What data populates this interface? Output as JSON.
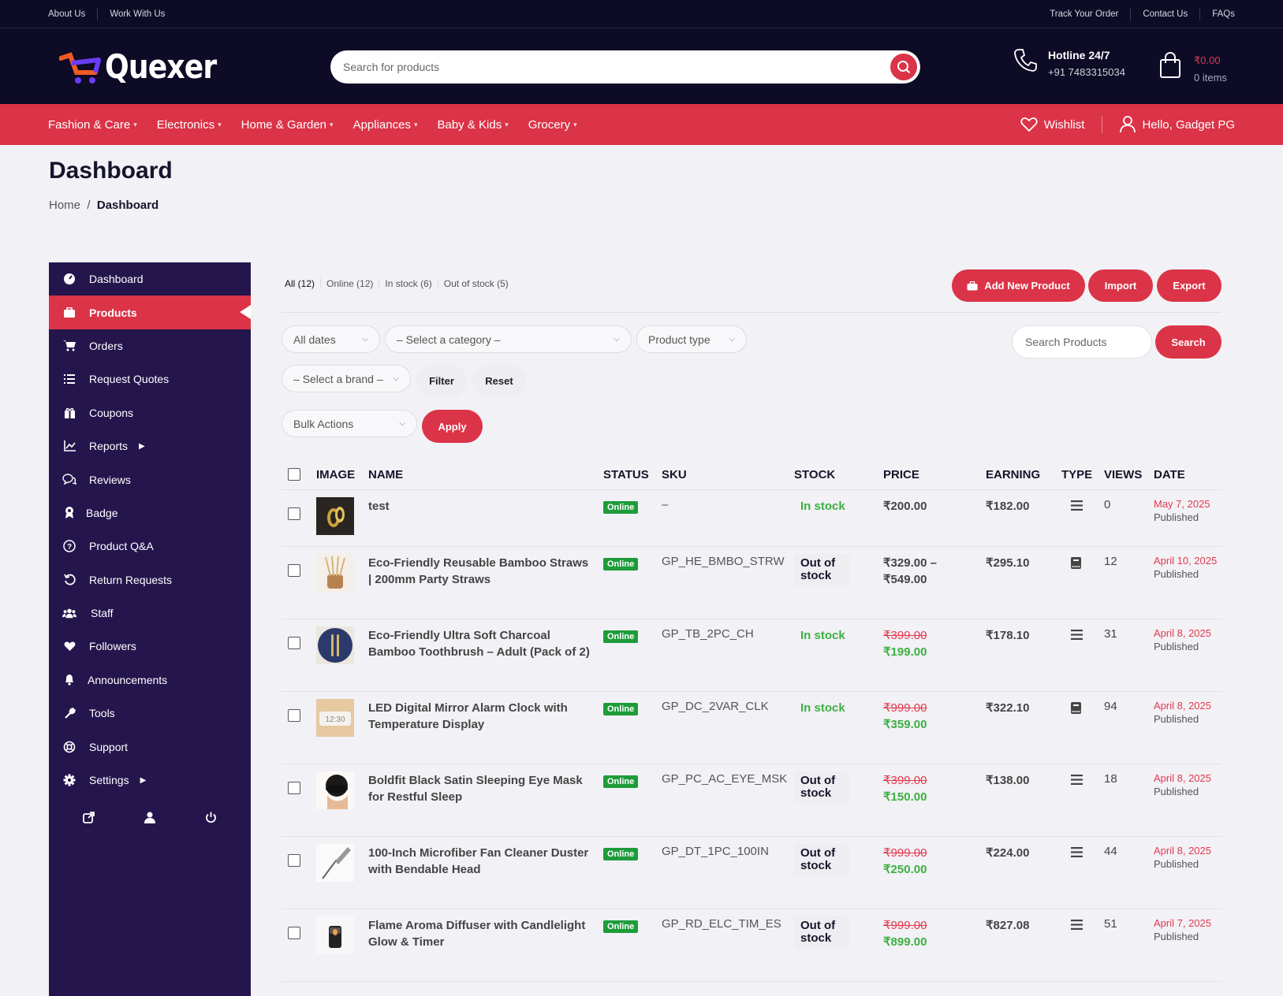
{
  "topbar": {
    "left_links": [
      "About Us",
      "Work With Us"
    ],
    "right_links": [
      "Track Your Order",
      "Contact Us",
      "FAQs"
    ]
  },
  "header": {
    "logo_text": "Quexer",
    "search_placeholder": "Search for products",
    "hotline_label": "Hotline 24/7",
    "hotline_number": "+91 7483315034",
    "cart_amount": "₹0.00",
    "cart_items": "0 items"
  },
  "nav": {
    "items": [
      "Fashion & Care",
      "Electronics",
      "Home & Garden",
      "Appliances",
      "Baby & Kids",
      "Grocery"
    ],
    "wishlist": "Wishlist",
    "user": "Hello, Gadget PG"
  },
  "page": {
    "title": "Dashboard",
    "breadcrumb_home": "Home",
    "breadcrumb_sep": "/",
    "breadcrumb_current": "Dashboard"
  },
  "sidebar": {
    "items": [
      {
        "label": "Dashboard",
        "icon": "dashboard-icon"
      },
      {
        "label": "Products",
        "icon": "briefcase-icon",
        "active": true
      },
      {
        "label": "Orders",
        "icon": "cart-icon"
      },
      {
        "label": "Request Quotes",
        "icon": "list-icon"
      },
      {
        "label": "Coupons",
        "icon": "gift-icon"
      },
      {
        "label": "Reports",
        "icon": "chart-icon",
        "submenu": true
      },
      {
        "label": "Reviews",
        "icon": "comments-icon"
      },
      {
        "label": "Badge",
        "icon": "badge-icon"
      },
      {
        "label": "Product Q&A",
        "icon": "question-icon"
      },
      {
        "label": "Return Requests",
        "icon": "undo-icon"
      },
      {
        "label": "Staff",
        "icon": "users-icon"
      },
      {
        "label": "Followers",
        "icon": "heart-icon"
      },
      {
        "label": "Announcements",
        "icon": "bell-icon"
      },
      {
        "label": "Tools",
        "icon": "wrench-icon"
      },
      {
        "label": "Support",
        "icon": "lifebuoy-icon"
      },
      {
        "label": "Settings",
        "icon": "gear-icon",
        "submenu": true
      }
    ]
  },
  "status_filters": [
    "All (12)",
    "Online (12)",
    "In stock (6)",
    "Out of stock (5)"
  ],
  "actions": {
    "add_new": "Add New Product",
    "import": "Import",
    "export": "Export"
  },
  "filters": {
    "dates": "All dates",
    "category": "– Select a category –",
    "product_type": "Product type",
    "brand": "– Select a brand –",
    "filter_btn": "Filter",
    "reset_btn": "Reset",
    "search_placeholder": "Search Products",
    "search_btn": "Search",
    "bulk": "Bulk Actions",
    "apply": "Apply"
  },
  "table": {
    "headers": [
      "IMAGE",
      "NAME",
      "STATUS",
      "SKU",
      "STOCK",
      "PRICE",
      "EARNING",
      "TYPE",
      "VIEWS",
      "DATE"
    ],
    "rows": [
      {
        "name": "test",
        "status": "Online",
        "sku": "–",
        "stock": "In stock",
        "in_stock": true,
        "price": "₹200.00",
        "price2": "",
        "regular": "",
        "sale": "",
        "earning": "₹182.00",
        "type": "variable",
        "views": "0",
        "date": "May 7, 2025",
        "published": "Published",
        "thumb": "ring"
      },
      {
        "name": "Eco-Friendly Reusable Bamboo Straws | 200mm Party Straws",
        "status": "Online",
        "sku": "GP_HE_BMBO_STRW",
        "stock": "Out of stock",
        "in_stock": false,
        "price": "₹329.00 –",
        "price2": "₹549.00",
        "regular": "",
        "sale": "",
        "earning": "₹295.10",
        "type": "book",
        "views": "12",
        "date": "April 10, 2025",
        "published": "Published",
        "thumb": "straw"
      },
      {
        "name": "Eco-Friendly Ultra Soft Charcoal Bamboo Toothbrush – Adult (Pack of 2)",
        "status": "Online",
        "sku": "GP_TB_2PC_CH",
        "stock": "In stock",
        "in_stock": true,
        "price": "",
        "price2": "",
        "regular": "₹399.00",
        "sale": "₹199.00",
        "earning": "₹178.10",
        "type": "variable",
        "views": "31",
        "date": "April 8, 2025",
        "published": "Published",
        "thumb": "brush"
      },
      {
        "name": "LED Digital Mirror Alarm Clock with Temperature Display",
        "status": "Online",
        "sku": "GP_DC_2VAR_CLK",
        "stock": "In stock",
        "in_stock": true,
        "price": "",
        "price2": "",
        "regular": "₹999.00",
        "sale": "₹359.00",
        "earning": "₹322.10",
        "type": "book",
        "views": "94",
        "date": "April 8, 2025",
        "published": "Published",
        "thumb": "clock"
      },
      {
        "name": "Boldfit Black Satin Sleeping Eye Mask for Restful Sleep",
        "status": "Online",
        "sku": "GP_PC_AC_EYE_MSK",
        "stock": "Out of stock",
        "in_stock": false,
        "price": "",
        "price2": "",
        "regular": "₹399.00",
        "sale": "₹150.00",
        "earning": "₹138.00",
        "type": "variable",
        "views": "18",
        "date": "April 8, 2025",
        "published": "Published",
        "thumb": "mask"
      },
      {
        "name": "100-Inch Microfiber Fan Cleaner Duster with Bendable Head",
        "status": "Online",
        "sku": "GP_DT_1PC_100IN",
        "stock": "Out of stock",
        "in_stock": false,
        "price": "",
        "price2": "",
        "regular": "₹999.00",
        "sale": "₹250.00",
        "earning": "₹224.00",
        "type": "variable",
        "views": "44",
        "date": "April 8, 2025",
        "published": "Published",
        "thumb": "duster"
      },
      {
        "name": "Flame Aroma Diffuser with Candlelight Glow & Timer",
        "status": "Online",
        "sku": "GP_RD_ELC_TIM_ES",
        "stock": "Out of stock",
        "in_stock": false,
        "price": "",
        "price2": "",
        "regular": "₹999.00",
        "sale": "₹899.00",
        "earning": "₹827.08",
        "type": "variable",
        "views": "51",
        "date": "April 7, 2025",
        "published": "Published",
        "thumb": "diffuser"
      }
    ]
  },
  "colors": {
    "brand_red": "#db3347",
    "dark": "#0d0b25",
    "sidebar": "#25154d",
    "success": "#1e9c3a"
  }
}
